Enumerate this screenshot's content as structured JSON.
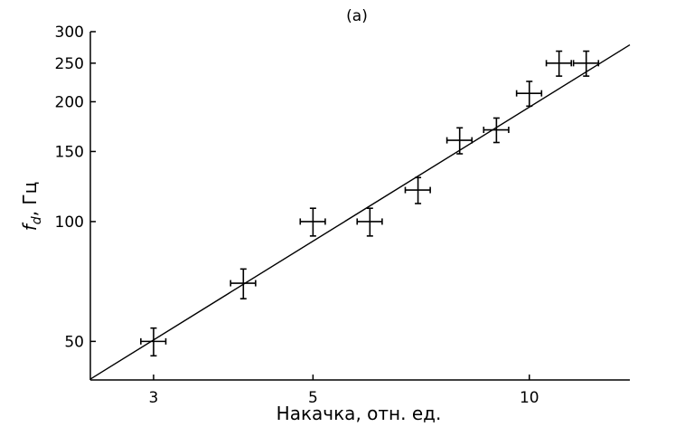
{
  "chart_data": {
    "type": "scatter",
    "title": "(a)",
    "xlabel": "Накачка, отн. ед.",
    "ylabel": {
      "base": "f",
      "sub": "d",
      "suffix": ", Гц"
    },
    "xscale": "log",
    "yscale": "log",
    "xlim": [
      2.45,
      13.8
    ],
    "ylim": [
      40,
      300
    ],
    "xticks": [
      3,
      5,
      10
    ],
    "yticks": [
      50,
      100,
      150,
      200,
      250,
      300
    ],
    "xtick_labels": [
      "3",
      "5",
      "10"
    ],
    "ytick_labels": [
      "50",
      "100",
      "150",
      "200",
      "250",
      "300"
    ],
    "grid": false,
    "series": [
      {
        "points": [
          {
            "x": 3.0,
            "y": 50,
            "xerr": 0.12,
            "yerr": 4
          },
          {
            "x": 4.0,
            "y": 70,
            "xerr": 0.16,
            "yerr": 6
          },
          {
            "x": 5.0,
            "y": 100,
            "xerr": 0.2,
            "yerr": 8
          },
          {
            "x": 6.0,
            "y": 100,
            "xerr": 0.24,
            "yerr": 8
          },
          {
            "x": 7.0,
            "y": 120,
            "xerr": 0.28,
            "yerr": 9
          },
          {
            "x": 8.0,
            "y": 160,
            "xerr": 0.32,
            "yerr": 12
          },
          {
            "x": 9.0,
            "y": 170,
            "xerr": 0.36,
            "yerr": 12
          },
          {
            "x": 10.0,
            "y": 210,
            "xerr": 0.4,
            "yerr": 15
          },
          {
            "x": 11.0,
            "y": 250,
            "xerr": 0.44,
            "yerr": 18
          },
          {
            "x": 12.0,
            "y": 250,
            "xerr": 0.48,
            "yerr": 18
          }
        ]
      }
    ],
    "fit_line": {
      "x": [
        2.45,
        13.8
      ],
      "y": [
        40.2,
        278
      ]
    }
  }
}
